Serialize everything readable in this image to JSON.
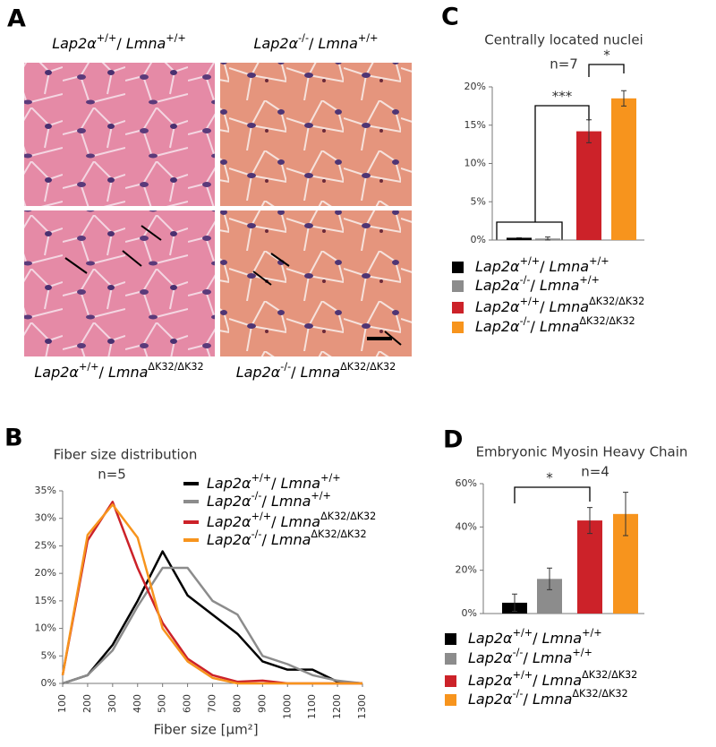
{
  "histology": {
    "panel": "A",
    "images": [
      "Lap2α+/+/ Lmna+/+",
      "Lap2α-/-/ Lmna+/+",
      "Lap2α+/+/ LmnaΔK32/ΔK32",
      "Lap2α-/-/ LmnaΔK32/ΔK32"
    ]
  },
  "chart_data": [
    {
      "type": "line",
      "panel": "B",
      "title": "Fiber size distribution",
      "subtitle": "n=5",
      "xlabel": "Fiber size [μm²]",
      "x": [
        100,
        200,
        300,
        400,
        500,
        600,
        700,
        800,
        900,
        1000,
        1100,
        1200,
        1300
      ],
      "xlim": [
        100,
        1300
      ],
      "xticks": [
        100,
        200,
        300,
        400,
        500,
        600,
        700,
        800,
        900,
        1000,
        1100,
        1200,
        1300
      ],
      "ylim": [
        0,
        35
      ],
      "yticks": [
        {
          "value": 0,
          "label": "0%"
        },
        {
          "value": 5,
          "label": "5%"
        },
        {
          "value": 10,
          "label": "10%"
        },
        {
          "value": 15,
          "label": "15%"
        },
        {
          "value": 20,
          "label": "20%"
        },
        {
          "value": 25,
          "label": "25%"
        },
        {
          "value": 30,
          "label": "30%"
        },
        {
          "value": 35,
          "label": "35%"
        }
      ],
      "series": [
        {
          "name": "Lap2α+/+/ Lmna+/+",
          "color": "#000000",
          "values": [
            0,
            1.5,
            7,
            15,
            24,
            16,
            12.5,
            9,
            4,
            2.5,
            2.5,
            0.3,
            0
          ]
        },
        {
          "name": "Lap2α-/-/ Lmna+/+",
          "color": "#8c8c8c",
          "values": [
            0,
            1.5,
            6,
            14,
            21,
            21,
            15,
            12.5,
            5,
            3.5,
            1.5,
            0.5,
            0
          ]
        },
        {
          "name": "Lap2α+/+/ LmnaΔK32/ΔK32",
          "color": "#cc2229",
          "values": [
            1.5,
            26,
            33,
            21,
            11,
            4.5,
            1.5,
            0.3,
            0.5,
            0,
            0,
            0,
            0
          ]
        },
        {
          "name": "Lap2α-/-/ LmnaΔK32/ΔK32",
          "color": "#f7941d",
          "values": [
            1.5,
            27,
            32.5,
            26.5,
            10,
            4,
            1,
            0,
            0,
            0,
            0,
            0,
            0
          ]
        }
      ]
    },
    {
      "type": "bar",
      "panel": "C",
      "title": "Centrally located nuclei",
      "subtitle": "n=7",
      "ylim": [
        0,
        20
      ],
      "yticks": [
        {
          "value": 0,
          "label": "0%"
        },
        {
          "value": 5,
          "label": "5%"
        },
        {
          "value": 10,
          "label": "10%"
        },
        {
          "value": 15,
          "label": "15%"
        },
        {
          "value": 20,
          "label": "20%"
        }
      ],
      "annotations": [
        "***",
        "*"
      ],
      "series": [
        {
          "name": "Lap2α+/+/ Lmna+/+",
          "color": "#000000",
          "values": [
            0.3
          ],
          "errors": [
            0
          ]
        },
        {
          "name": "Lap2α-/-/ Lmna+/+",
          "color": "#8c8c8c",
          "values": [
            0.2
          ],
          "errors": [
            0.2
          ]
        },
        {
          "name": "Lap2α+/+/ LmnaΔK32/ΔK32",
          "color": "#cc2229",
          "values": [
            14.2
          ],
          "errors": [
            1.5
          ]
        },
        {
          "name": "Lap2α-/-/ LmnaΔK32/ΔK32",
          "color": "#f7941d",
          "values": [
            18.5
          ],
          "errors": [
            1
          ]
        }
      ]
    },
    {
      "type": "bar",
      "panel": "D",
      "title": "Embryonic Myosin Heavy Chain",
      "subtitle": "n=4",
      "ylim": [
        0,
        60
      ],
      "yticks": [
        {
          "value": 0,
          "label": "0%"
        },
        {
          "value": 20,
          "label": "20%"
        },
        {
          "value": 40,
          "label": "40%"
        },
        {
          "value": 60,
          "label": "60%"
        }
      ],
      "annotations": [
        "*"
      ],
      "series": [
        {
          "name": "Lap2α+/+/ Lmna+/+",
          "color": "#000000",
          "values": [
            5
          ],
          "errors": [
            4
          ]
        },
        {
          "name": "Lap2α-/-/ Lmna+/+",
          "color": "#8c8c8c",
          "values": [
            16
          ],
          "errors": [
            5
          ]
        },
        {
          "name": "Lap2α+/+/ LmnaΔK32/ΔK32",
          "color": "#cc2229",
          "values": [
            43
          ],
          "errors": [
            6
          ]
        },
        {
          "name": "Lap2α-/-/ LmnaΔK32/ΔK32",
          "color": "#f7941d",
          "values": [
            46
          ],
          "errors": [
            10
          ]
        }
      ]
    }
  ]
}
